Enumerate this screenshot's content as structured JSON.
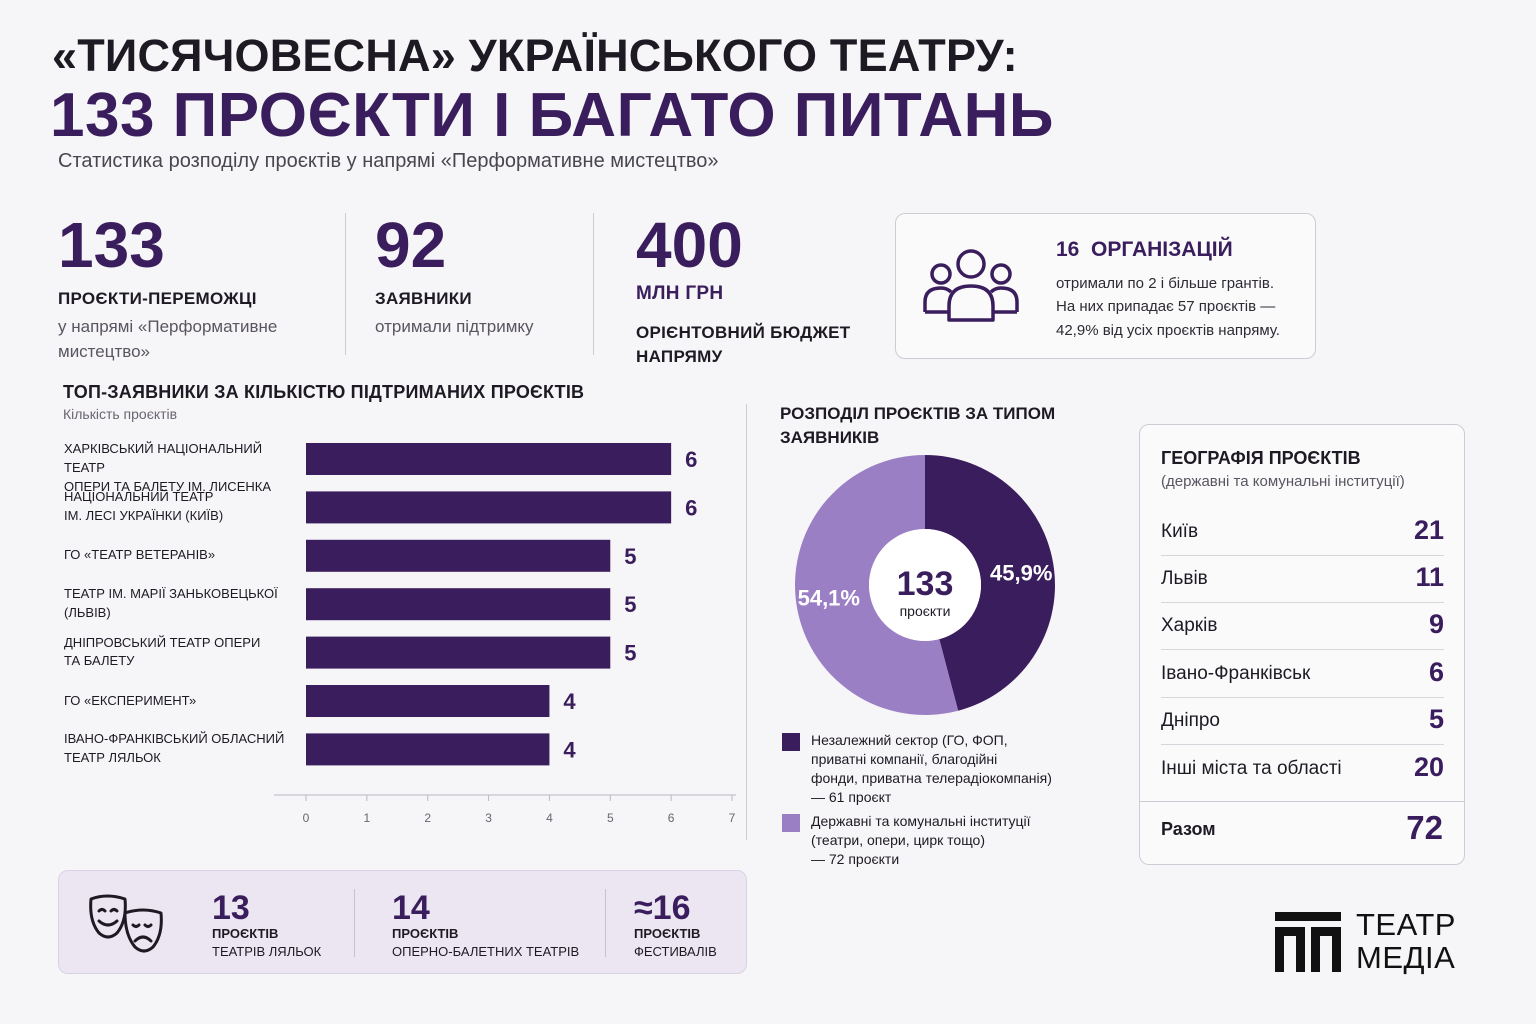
{
  "header": {
    "title_line1": "«ТИСЯЧОВЕСНА» УКРАЇНСЬКОГО ТЕАТРУ:",
    "title_line2": "133 ПРОЄКТИ І БАГАТО ПИТАНЬ",
    "subtitle": "Статистика розподілу проєктів у напрямі «Перформативне мистецтво»"
  },
  "stats": [
    {
      "value": "133",
      "label": "ПРОЄКТИ-ПЕРЕМОЖЦІ",
      "sub1": "у напрямі «Перформативне",
      "sub2": "мистецтво»"
    },
    {
      "value": "92",
      "label": "ЗАЯВНИКИ",
      "sub1": "отримали підтримку",
      "sub2": ""
    },
    {
      "value": "400",
      "label": "МЛН ГРН",
      "sub1": "ОРІЄНТОВНИЙ БЮДЖЕТ",
      "sub2": "НАПРЯМУ"
    }
  ],
  "organizations": {
    "count": "16",
    "title": "ОРГАНІЗАЦІЙ",
    "line1": "отримали по 2 і більше грантів.",
    "line2": "На них припадає 57 проєктів —",
    "line3": "42,9% від усіх проєктів напряму.",
    "icon": "group-icon"
  },
  "bar_section": {
    "title": "ТОП-ЗАЯВНИКИ ЗА КІЛЬКІСТЮ ПІДТРИМАНИХ ПРОЄКТІВ",
    "subtitle": "Кількість проєктів"
  },
  "pie_section": {
    "title": "РОЗПОДІЛ ПРОЄКТІВ ЗА ТИПОМ ЗАЯВНИКІВ",
    "center_value": "133",
    "center_label": "проєкти",
    "legend": [
      {
        "l1": "Незалежний сектор (ГО, ФОП,",
        "l2": "приватні компанії, благодійні",
        "l3": "фонди, приватна телерадіокомпанія)",
        "l4": "— 61 проєкт",
        "color": "#3a1d5c"
      },
      {
        "l1": "Державні та комунальні інституції",
        "l2": "(театри, опери, цирк тощо)",
        "l3": "— 72 проєкти",
        "l4": "",
        "color": "#9b7fc4"
      }
    ]
  },
  "chart_data": [
    {
      "type": "bar",
      "orientation": "horizontal",
      "title": "ТОП-ЗАЯВНИКИ ЗА КІЛЬКІСТЮ ПІДТРИМАНИХ ПРОЄКТІВ",
      "ylabel": "Кількість проєктів",
      "categories": [
        [
          "ХАРКІВСЬКИЙ НАЦІОНАЛЬНИЙ ТЕАТР",
          "ОПЕРИ ТА БАЛЕТУ ІМ. ЛИСЕНКА"
        ],
        [
          "НАЦІОНАЛЬНИЙ ТЕАТР",
          "ІМ. ЛЕСІ УКРАЇНКИ (КИЇВ)"
        ],
        [
          "ГО «ТЕАТР ВЕТЕРАНІВ»"
        ],
        [
          "ТЕАТР ІМ. МАРІЇ ЗАНЬКОВЕЦЬКОЇ",
          "(ЛЬВІВ)"
        ],
        [
          "ДНІПРОВСЬКИЙ ТЕАТР ОПЕРИ",
          "ТА БАЛЕТУ"
        ],
        [
          "ГО «ЕКСПЕРИМЕНТ»"
        ],
        [
          "ІВАНО-ФРАНКІВСЬКИЙ ОБЛАСНИЙ",
          "ТЕАТР ЛЯЛЬОК"
        ]
      ],
      "values": [
        6,
        6,
        5,
        5,
        5,
        4,
        4
      ],
      "xlim": [
        0,
        7
      ],
      "ticks": [
        0,
        1,
        2,
        3,
        4,
        5,
        6,
        7
      ],
      "color": "#3a1d5c"
    },
    {
      "type": "pie",
      "title": "РОЗПОДІЛ ПРОЄКТІВ ЗА ТИПОМ ЗАЯВНИКІВ",
      "donut": true,
      "slices": [
        {
          "label": "45,9%",
          "value": 45.9,
          "color": "#3a1d5c"
        },
        {
          "label": "54,1%",
          "value": 54.1,
          "color": "#9b7fc4"
        }
      ]
    },
    {
      "type": "table",
      "title": "ГЕОГРАФІЯ ПРОЄКТІВ",
      "subtitle": "(державні та комунальні інституції)",
      "rows": [
        {
          "city": "Київ",
          "value": "21"
        },
        {
          "city": "Львів",
          "value": "11"
        },
        {
          "city": "Харків",
          "value": "9"
        },
        {
          "city": "Івано-Франківськ",
          "value": "6"
        },
        {
          "city": "Дніпро",
          "value": "5"
        },
        {
          "city": "Інші міста та області",
          "value": "20"
        }
      ],
      "total_label": "Разом",
      "total_value": "72"
    }
  ],
  "bottom": {
    "icon": "theatre-masks-icon",
    "items": [
      {
        "num": "13",
        "l1": "ПРОЄКТІВ",
        "l2": "ТЕАТРІВ ЛЯЛЬОК"
      },
      {
        "num": "14",
        "l1": "ПРОЄКТІВ",
        "l2": "ОПЕРНО-БАЛЕТНИХ ТЕАТРІВ"
      },
      {
        "num": "≈16",
        "l1": "ПРОЄКТІВ",
        "l2": "ФЕСТИВАЛІВ"
      }
    ]
  },
  "logo": {
    "line1": "ТЕАТР",
    "line2": "МЕДІА"
  },
  "colors": {
    "accent": "#3a1d5c",
    "accent_light": "#9b7fc4",
    "background": "#f6f5f7"
  }
}
